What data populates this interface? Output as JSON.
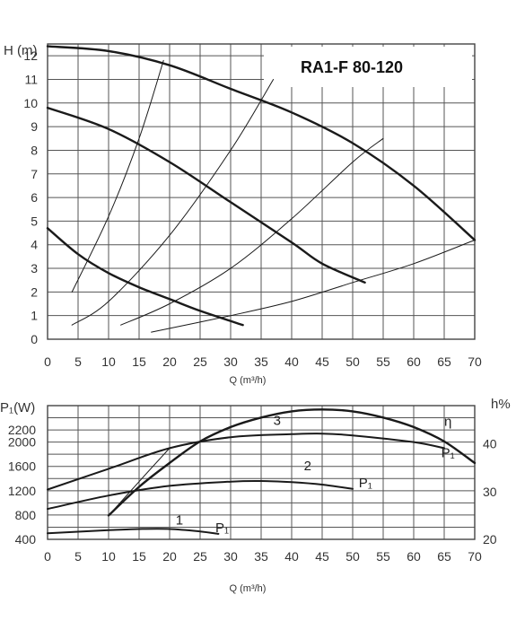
{
  "chart_data": [
    {
      "type": "line",
      "model": "RA1-F 80-120",
      "ylabel": "H (m)",
      "xlabel": "Q (m³/h)",
      "xlim": [
        0,
        70
      ],
      "ylim": [
        0,
        12.5
      ],
      "xticks": [
        "0",
        "5",
        "10",
        "15",
        "20",
        "25",
        "30",
        "35",
        "40",
        "45",
        "50",
        "55",
        "60",
        "65",
        "70"
      ],
      "yticks": [
        "0",
        "1",
        "2",
        "3",
        "4",
        "5",
        "6",
        "7",
        "8",
        "9",
        "10",
        "11",
        "12"
      ],
      "grid": true,
      "series": [
        {
          "kind": "speed",
          "width": 2.4,
          "x": [
            0,
            10,
            20,
            30,
            40,
            50,
            60,
            70
          ],
          "y": [
            12.4,
            12.2,
            11.6,
            10.6,
            9.6,
            8.3,
            6.5,
            4.2
          ]
        },
        {
          "kind": "speed",
          "width": 2.4,
          "x": [
            0,
            10,
            20,
            30,
            40,
            45,
            52
          ],
          "y": [
            9.8,
            8.9,
            7.5,
            5.8,
            4.1,
            3.2,
            2.4
          ]
        },
        {
          "kind": "speed",
          "width": 2.4,
          "x": [
            0,
            5,
            10,
            15,
            20,
            25,
            32
          ],
          "y": [
            4.7,
            3.6,
            2.8,
            2.2,
            1.7,
            1.2,
            0.6
          ]
        },
        {
          "kind": "system",
          "width": 1,
          "x": [
            4,
            10,
            15,
            19
          ],
          "y": [
            2,
            5.2,
            8.5,
            11.8
          ]
        },
        {
          "kind": "system",
          "width": 1,
          "x": [
            4,
            10,
            20,
            30,
            37
          ],
          "y": [
            0.6,
            1.6,
            4.4,
            8.0,
            11.0
          ]
        },
        {
          "kind": "system",
          "width": 1,
          "x": [
            12,
            20,
            30,
            40,
            50,
            55
          ],
          "y": [
            0.6,
            1.5,
            3.0,
            5.1,
            7.5,
            8.5
          ]
        },
        {
          "kind": "system",
          "width": 1,
          "x": [
            17,
            30,
            40,
            50,
            60,
            70
          ],
          "y": [
            0.3,
            1.0,
            1.6,
            2.4,
            3.2,
            4.2
          ]
        }
      ]
    },
    {
      "type": "line",
      "ylabel": "P₁(W)",
      "y2label": "h%",
      "xlabel": "Q (m³/h)",
      "xlim": [
        0,
        70
      ],
      "ylim": [
        400,
        2600
      ],
      "y2lim": [
        20,
        48
      ],
      "xticks": [
        "0",
        "5",
        "10",
        "15",
        "20",
        "25",
        "30",
        "35",
        "40",
        "45",
        "50",
        "55",
        "60",
        "65",
        "70"
      ],
      "yticks": [
        {
          "label": "400",
          "v": 400
        },
        {
          "label": "800",
          "v": 800
        },
        {
          "label": "1200",
          "v": 1200
        },
        {
          "label": "1600",
          "v": 1600
        },
        {
          "label": "2000",
          "v": 2000
        },
        {
          "label": "2200",
          "v": 2200
        }
      ],
      "y2ticks": [
        {
          "label": "20",
          "v": 20
        },
        {
          "label": "30",
          "v": 30
        },
        {
          "label": "40",
          "v": 40
        }
      ],
      "grid": true,
      "series": [
        {
          "name": "P₁",
          "axis": "left",
          "width": 2,
          "x": [
            0,
            10,
            20,
            30,
            40,
            45,
            50,
            60,
            65
          ],
          "y": [
            1220,
            1560,
            1900,
            2080,
            2130,
            2140,
            2110,
            2000,
            1900
          ]
        },
        {
          "name": "P₁",
          "axis": "left",
          "width": 2,
          "x": [
            0,
            10,
            20,
            30,
            35,
            40,
            45,
            50
          ],
          "y": [
            900,
            1120,
            1280,
            1350,
            1360,
            1340,
            1300,
            1230
          ]
        },
        {
          "name": "P₁",
          "axis": "left",
          "width": 2,
          "x": [
            0,
            10,
            15,
            20,
            25,
            28
          ],
          "y": [
            500,
            550,
            570,
            570,
            530,
            490
          ]
        },
        {
          "name": "η",
          "axis": "right",
          "width": 2.4,
          "x": [
            10,
            15,
            20,
            25,
            30,
            35,
            40,
            45,
            50,
            55,
            60,
            65,
            70
          ],
          "y": [
            25,
            31,
            36,
            40.5,
            43.5,
            45.5,
            46.8,
            47.2,
            46.8,
            45.5,
            43.5,
            40.5,
            36
          ]
        },
        {
          "name": "",
          "axis": "left",
          "width": 1,
          "x": [
            10,
            15,
            20
          ],
          "y": [
            790,
            1350,
            1900
          ]
        }
      ],
      "annotations": [
        {
          "text": "3",
          "x": 37,
          "y": 2280
        },
        {
          "text": "2",
          "x": 42,
          "y": 1540
        },
        {
          "text": "1",
          "x": 21,
          "y": 640
        },
        {
          "text": "P₁",
          "x": 51,
          "y": 1260
        },
        {
          "text": "P₁",
          "x": 27.5,
          "y": 520
        },
        {
          "text": "P₁",
          "x": 64.5,
          "y": 1750
        },
        {
          "text": "η",
          "x": 65,
          "y": 2270
        }
      ]
    }
  ]
}
